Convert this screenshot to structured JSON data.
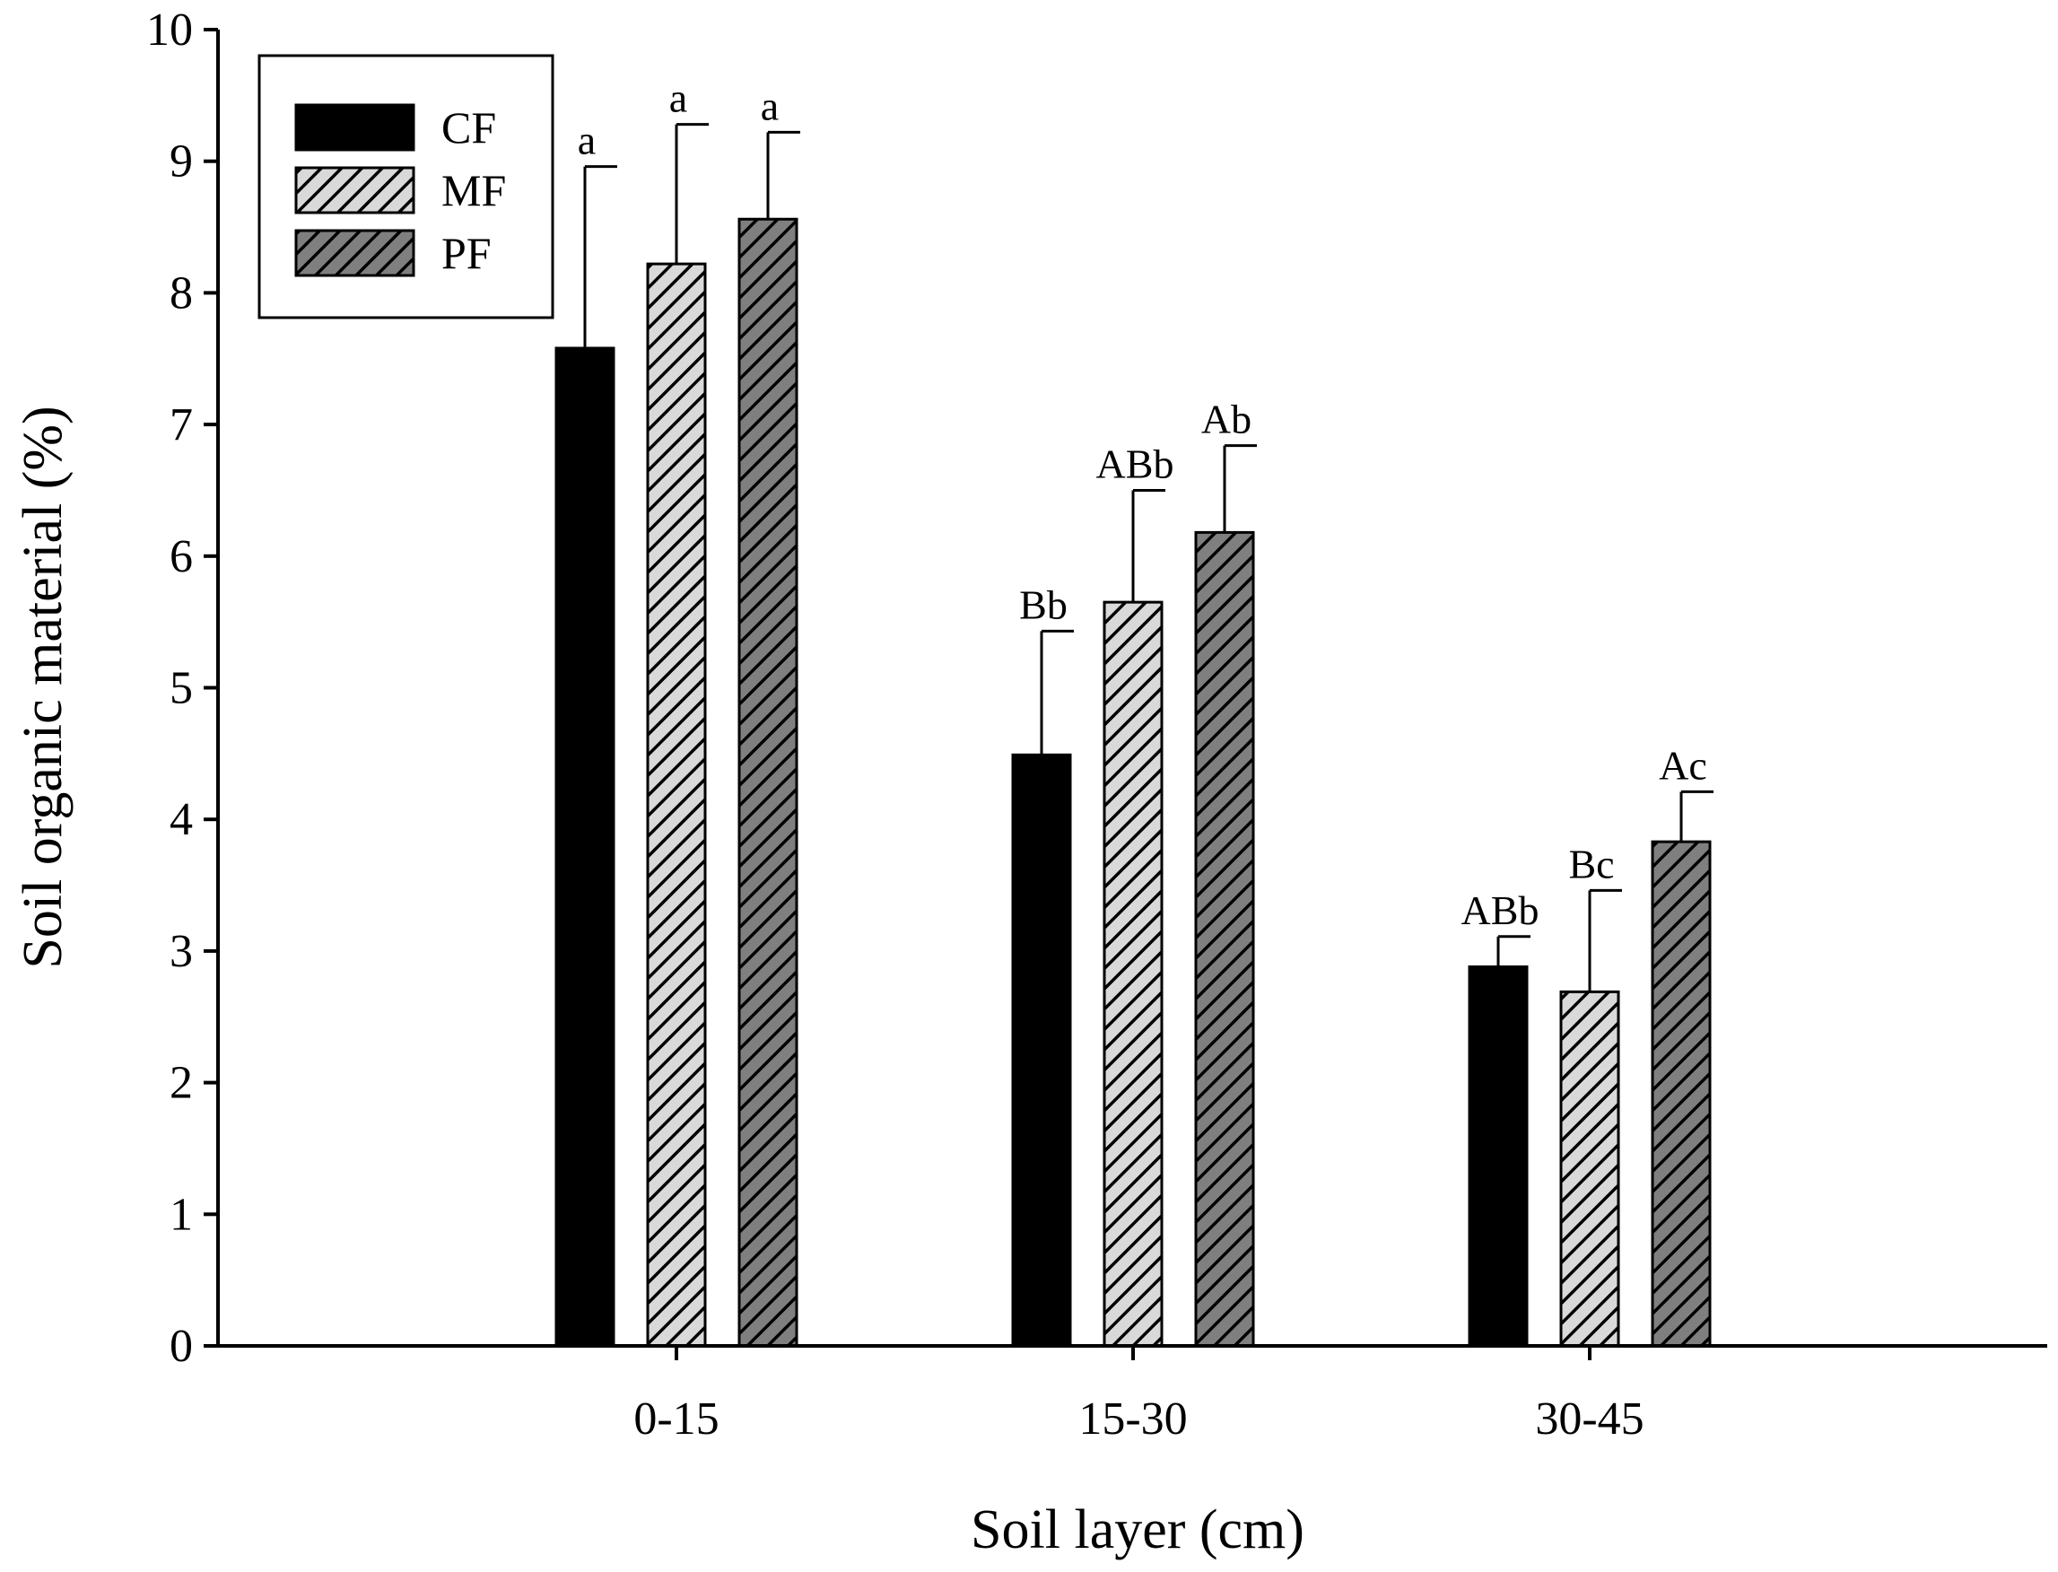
{
  "chart_data": {
    "type": "bar",
    "xlabel": "Soil layer (cm)",
    "ylabel": "Soil organic material (%)",
    "ylim": [
      0,
      10
    ],
    "yticks": [
      0,
      1,
      2,
      3,
      4,
      5,
      6,
      7,
      8,
      9,
      10
    ],
    "categories": [
      "0-15",
      "15-30",
      "30-45"
    ],
    "grid": false,
    "legend": "top-left",
    "series": [
      {
        "name": "CF",
        "fill": "#000000",
        "pattern": "solid",
        "values": [
          7.58,
          4.49,
          2.88
        ],
        "errors": [
          1.38,
          0.94,
          0.23
        ],
        "labels": [
          "a",
          "Bb",
          "ABb"
        ]
      },
      {
        "name": "MF",
        "fill": "#d9d9d9",
        "pattern": "hatch",
        "values": [
          8.22,
          5.65,
          2.69
        ],
        "errors": [
          1.06,
          0.85,
          0.77
        ],
        "labels": [
          "a",
          "ABb",
          "Bc"
        ]
      },
      {
        "name": "PF",
        "fill": "#7f7f7f",
        "pattern": "hatch",
        "values": [
          8.56,
          6.18,
          3.83
        ],
        "errors": [
          0.66,
          0.66,
          0.38
        ],
        "labels": [
          "a",
          "Ab",
          "Ac"
        ]
      }
    ]
  }
}
